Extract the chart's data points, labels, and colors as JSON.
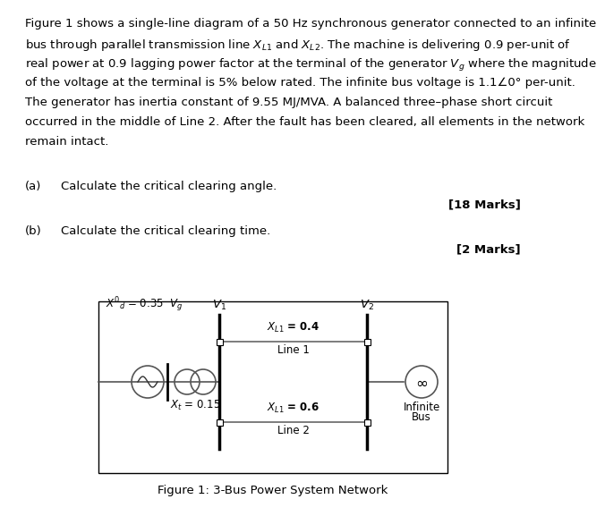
{
  "title_text": "Figure 1: 3-Bus Power System Network",
  "bg_color": "#ffffff",
  "font_size_body": 9.5,
  "font_size_diagram": 8.5,
  "paragraph_lines": [
    "Figure 1 shows a single-line diagram of a 50 Hz synchronous generator connected to an infinite",
    "bus through parallel transmission line $X_{L1}$ and $X_{L2}$. The machine is delivering 0.9 per-unit of",
    "real power at 0.9 lagging power factor at the terminal of the generator $V_g$ where the magnitude",
    "of the voltage at the terminal is 5% below rated. The infinite bus voltage is 1.1∠0° per-unit.",
    "The generator has inertia constant of 9.55 MJ/MVA. A balanced three–phase short circuit",
    "occurred in the middle of Line 2. After the fault has been cleared, all elements in the network",
    "remain intact."
  ],
  "part_a_label": "(a)",
  "part_a_text": "Calculate the critical clearing angle.",
  "part_a_marks": "[18 Marks]",
  "part_b_label": "(b)",
  "part_b_text": "Calculate the critical clearing time.",
  "part_b_marks": "[2 Marks]"
}
